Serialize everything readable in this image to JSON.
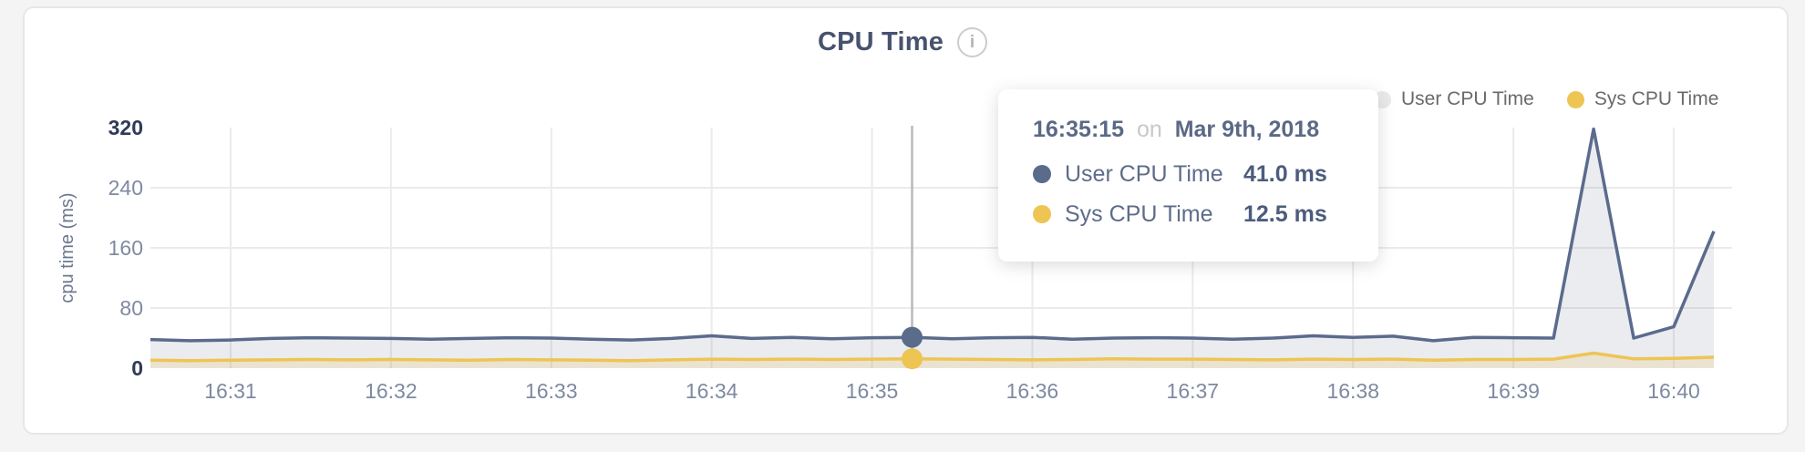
{
  "colors": {
    "user_series": "#5b6b8c",
    "sys_series": "#eec453",
    "user_fill": "rgba(91,107,140,0.13)",
    "sys_fill": "rgba(238,196,83,0.20)",
    "grid": "#ebebeb",
    "crosshair": "#b9b9b9",
    "tick_label": "#7f89a1",
    "tick_label_emphasis": "#2e3a57",
    "legend_user_dot_displayed": "#eaeaea"
  },
  "header": {
    "title": "CPU Time",
    "info_icon_glyph": "i"
  },
  "legend": {
    "items": [
      {
        "label": "User CPU Time",
        "dot_color": "#eaeaea"
      },
      {
        "label": "Sys CPU Time",
        "dot_color": "#eec453"
      }
    ]
  },
  "tooltip": {
    "time": "16:35:15",
    "conjunction": "on",
    "date": "Mar 9th, 2018",
    "rows": [
      {
        "label": "User CPU Time",
        "value": "41.0 ms",
        "color": "#5b6b8c"
      },
      {
        "label": "Sys CPU Time",
        "value": "12.5 ms",
        "color": "#eec453"
      }
    ]
  },
  "chart_data": {
    "type": "area",
    "title": "CPU Time",
    "ylabel": "cpu time (ms)",
    "unit": "ms",
    "ylim": [
      0,
      320
    ],
    "grid": true,
    "legend_position": "top-right",
    "y_ticks": [
      {
        "label": "320",
        "value": 320,
        "emphasis": true,
        "gridline": false
      },
      {
        "label": "240",
        "value": 240,
        "emphasis": false,
        "gridline": true
      },
      {
        "label": "160",
        "value": 160,
        "emphasis": false,
        "gridline": true
      },
      {
        "label": "80",
        "value": 80,
        "emphasis": false,
        "gridline": true
      },
      {
        "label": "0",
        "value": 0,
        "emphasis": true,
        "gridline": false
      }
    ],
    "x_ticks": [
      {
        "label": "16:31",
        "index": 2
      },
      {
        "label": "16:32",
        "index": 6
      },
      {
        "label": "16:33",
        "index": 10
      },
      {
        "label": "16:34",
        "index": 14
      },
      {
        "label": "16:35",
        "index": 18
      },
      {
        "label": "16:36",
        "index": 22
      },
      {
        "label": "16:37",
        "index": 26
      },
      {
        "label": "16:38",
        "index": 30
      },
      {
        "label": "16:39",
        "index": 34
      },
      {
        "label": "16:40",
        "index": 38
      }
    ],
    "x_times": [
      "16:30:30",
      "16:30:45",
      "16:31:00",
      "16:31:15",
      "16:31:30",
      "16:31:45",
      "16:32:00",
      "16:32:15",
      "16:32:30",
      "16:32:45",
      "16:33:00",
      "16:33:15",
      "16:33:30",
      "16:33:45",
      "16:34:00",
      "16:34:15",
      "16:34:30",
      "16:34:45",
      "16:35:00",
      "16:35:15",
      "16:35:30",
      "16:35:45",
      "16:36:00",
      "16:36:15",
      "16:36:30",
      "16:36:45",
      "16:37:00",
      "16:37:15",
      "16:37:30",
      "16:37:45",
      "16:38:00",
      "16:38:15",
      "16:38:30",
      "16:38:45",
      "16:39:00",
      "16:39:15",
      "16:39:30",
      "16:39:45",
      "16:40:00",
      "16:40:15"
    ],
    "series": [
      {
        "name": "User CPU Time",
        "color": "#5b6b8c",
        "values": [
          38,
          36.5,
          37.5,
          39.5,
          40.5,
          40,
          39.5,
          38.5,
          39.5,
          40.5,
          40,
          38.5,
          37.5,
          39.5,
          43,
          39.5,
          41,
          39,
          40.5,
          41,
          39,
          40.5,
          41,
          38.5,
          40,
          40.5,
          40,
          38.5,
          40,
          43,
          41,
          42.5,
          36.5,
          41,
          40.5,
          40,
          318,
          40,
          55,
          182
        ]
      },
      {
        "name": "Sys CPU Time",
        "color": "#eec453",
        "values": [
          10.5,
          10,
          10.5,
          11,
          11.5,
          11,
          11.5,
          11,
          10.5,
          11.5,
          11,
          10.5,
          10,
          11,
          12,
          11.5,
          12,
          11.5,
          12,
          12.5,
          12,
          11.5,
          11,
          11.5,
          12.5,
          12,
          12,
          11.5,
          11,
          12,
          11.5,
          12,
          10.5,
          11.5,
          11.5,
          12,
          20,
          12.5,
          13,
          14.5
        ]
      }
    ],
    "hover": {
      "index": 19,
      "time": "16:35:15",
      "values": {
        "User CPU Time": 41.0,
        "Sys CPU Time": 12.5
      }
    }
  }
}
